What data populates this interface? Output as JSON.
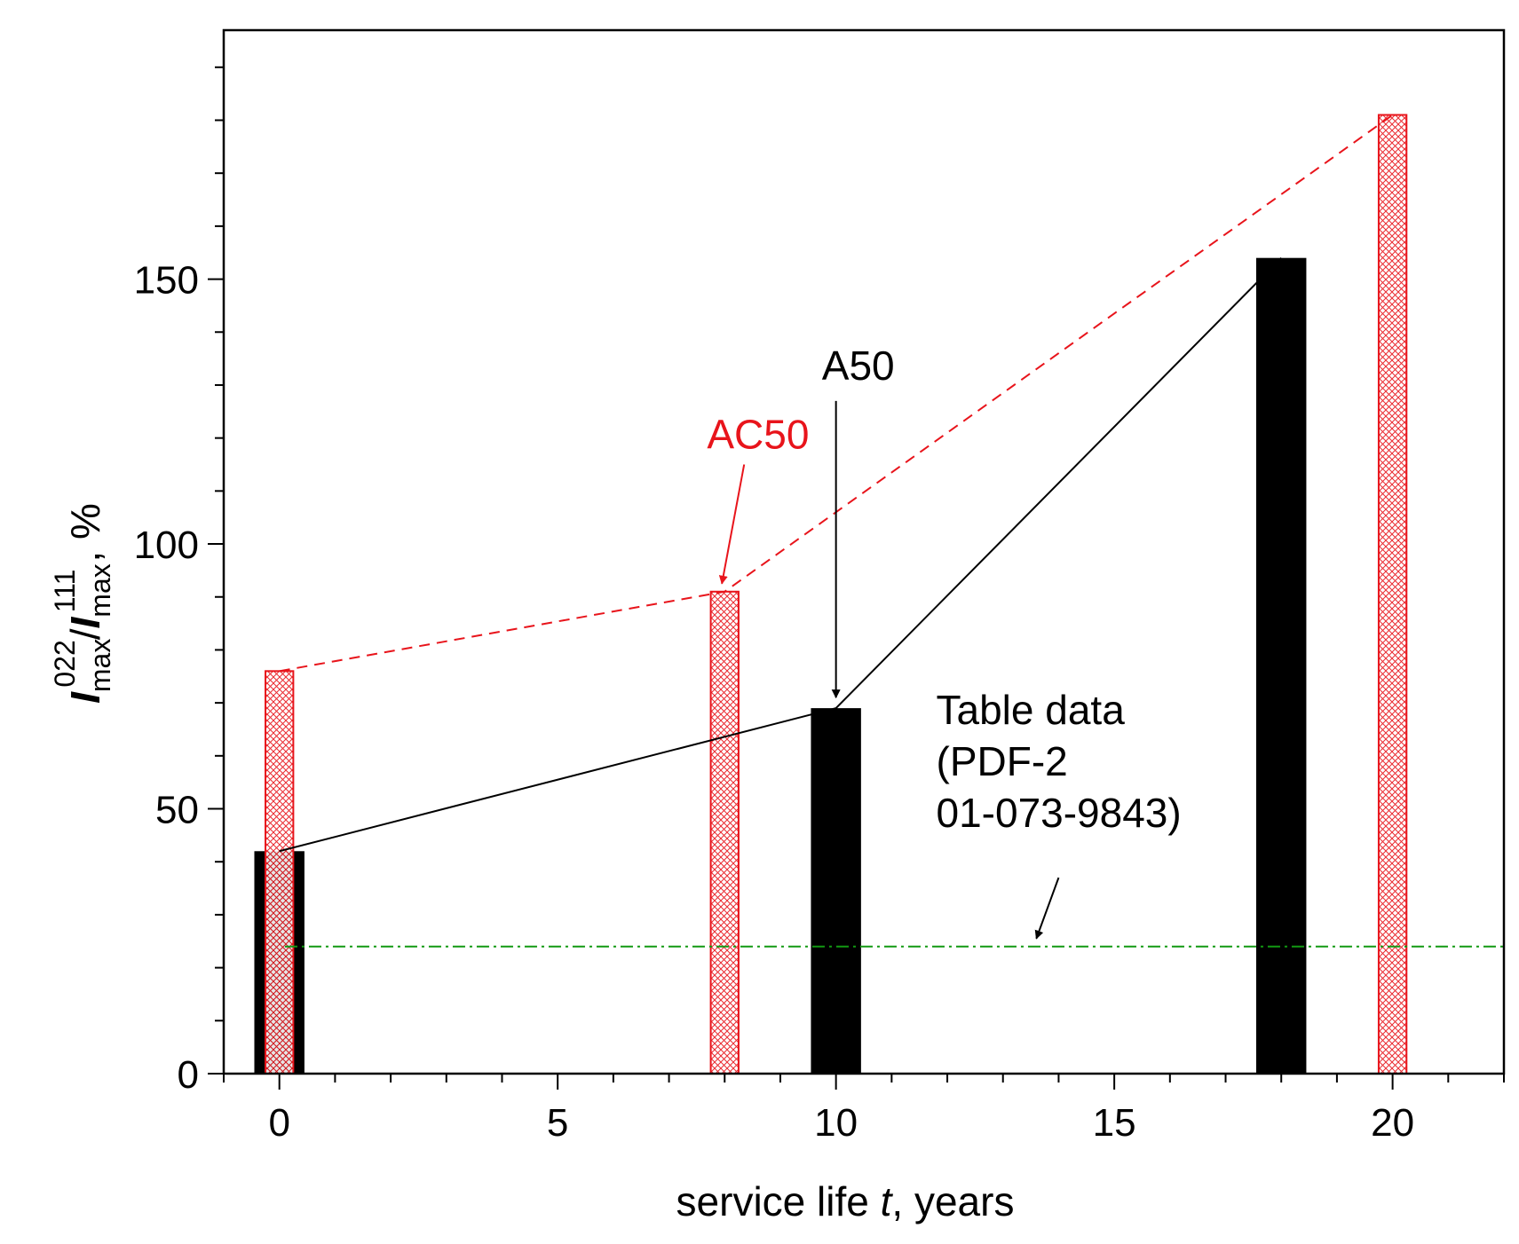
{
  "chart_data": {
    "type": "bar",
    "title": "",
    "xlabel": {
      "prefix": "service life ",
      "var": "t",
      "suffix": ", years"
    },
    "ylabel": {
      "I1": "I",
      "sub1": "max",
      "sup1": "022",
      "slash": "/",
      "I2": "I",
      "sub2": "max",
      "sup2": "111",
      "suffix": ", %"
    },
    "xlim": [
      -1,
      22
    ],
    "ylim": [
      0,
      197
    ],
    "xticks": [
      0,
      5,
      10,
      15,
      20
    ],
    "xtick_labels": [
      "0",
      "5",
      "10",
      "15",
      "20"
    ],
    "yticks": [
      0,
      50,
      100,
      150
    ],
    "ytick_labels": [
      "0",
      "50",
      "100",
      "150"
    ],
    "x_minor_step": 1,
    "y_minor_step": 10,
    "grid": false,
    "series": [
      {
        "name": "A50",
        "style": "solid-black",
        "color": "#000000",
        "x": [
          0,
          10,
          18
        ],
        "values": [
          42,
          69,
          154
        ]
      },
      {
        "name": "AC50",
        "style": "hatched-red",
        "color": "#e8141b",
        "x": [
          0,
          8,
          20
        ],
        "values": [
          76,
          91,
          181
        ]
      }
    ],
    "reference_line": {
      "label_lines": [
        "Table data",
        "(PDF-2",
        "01-073-9843)"
      ],
      "y": 24,
      "color": "#129912"
    },
    "annotations": [
      {
        "text": "AC50",
        "color": "#e8141b",
        "points_to_x": 8,
        "points_to_y": 91
      },
      {
        "text": "A50",
        "color": "#000000",
        "points_to_x": 10,
        "points_to_y": 69
      }
    ]
  }
}
